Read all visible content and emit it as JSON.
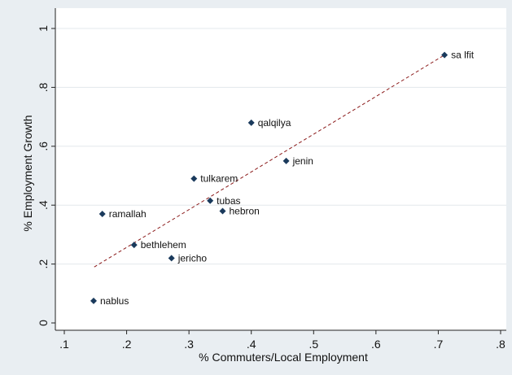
{
  "chart_data": {
    "type": "scatter",
    "title": "",
    "xlabel": "% Commuters/Local Employment",
    "ylabel": "% Employment Growth",
    "xlim": [
      0.1,
      0.8
    ],
    "ylim": [
      0,
      1
    ],
    "x_ticks": [
      0.1,
      0.2,
      0.3,
      0.4,
      0.5,
      0.6,
      0.7,
      0.8
    ],
    "x_tick_labels": [
      ".1",
      ".2",
      ".3",
      ".4",
      ".5",
      ".6",
      ".7",
      ".8"
    ],
    "y_ticks": [
      0,
      0.2,
      0.4,
      0.6,
      0.8,
      1
    ],
    "y_tick_labels": [
      "0",
      ".2",
      ".4",
      ".6",
      ".8",
      "1"
    ],
    "grid": "horizontal",
    "colors": {
      "background": "#e9eef2",
      "plot_area": "#ffffff",
      "marker": "#1a3a5c",
      "fit_line": "#8b1a1a",
      "grid": "#e3e8ec"
    },
    "points": [
      {
        "label": "sa lfit",
        "x": 0.71,
        "y": 0.91
      },
      {
        "label": "qalqilya",
        "x": 0.4,
        "y": 0.68
      },
      {
        "label": "jenin",
        "x": 0.456,
        "y": 0.55
      },
      {
        "label": "tulkarem",
        "x": 0.308,
        "y": 0.49
      },
      {
        "label": "tubas",
        "x": 0.334,
        "y": 0.415
      },
      {
        "label": "hebron",
        "x": 0.354,
        "y": 0.38
      },
      {
        "label": "ramallah",
        "x": 0.161,
        "y": 0.37
      },
      {
        "label": "bethlehem",
        "x": 0.212,
        "y": 0.265
      },
      {
        "label": "jericho",
        "x": 0.272,
        "y": 0.22
      },
      {
        "label": "nablus",
        "x": 0.147,
        "y": 0.075
      }
    ],
    "fit_line": {
      "x": [
        0.148,
        0.71
      ],
      "y": [
        0.19,
        0.91
      ],
      "style": "dashed"
    }
  }
}
